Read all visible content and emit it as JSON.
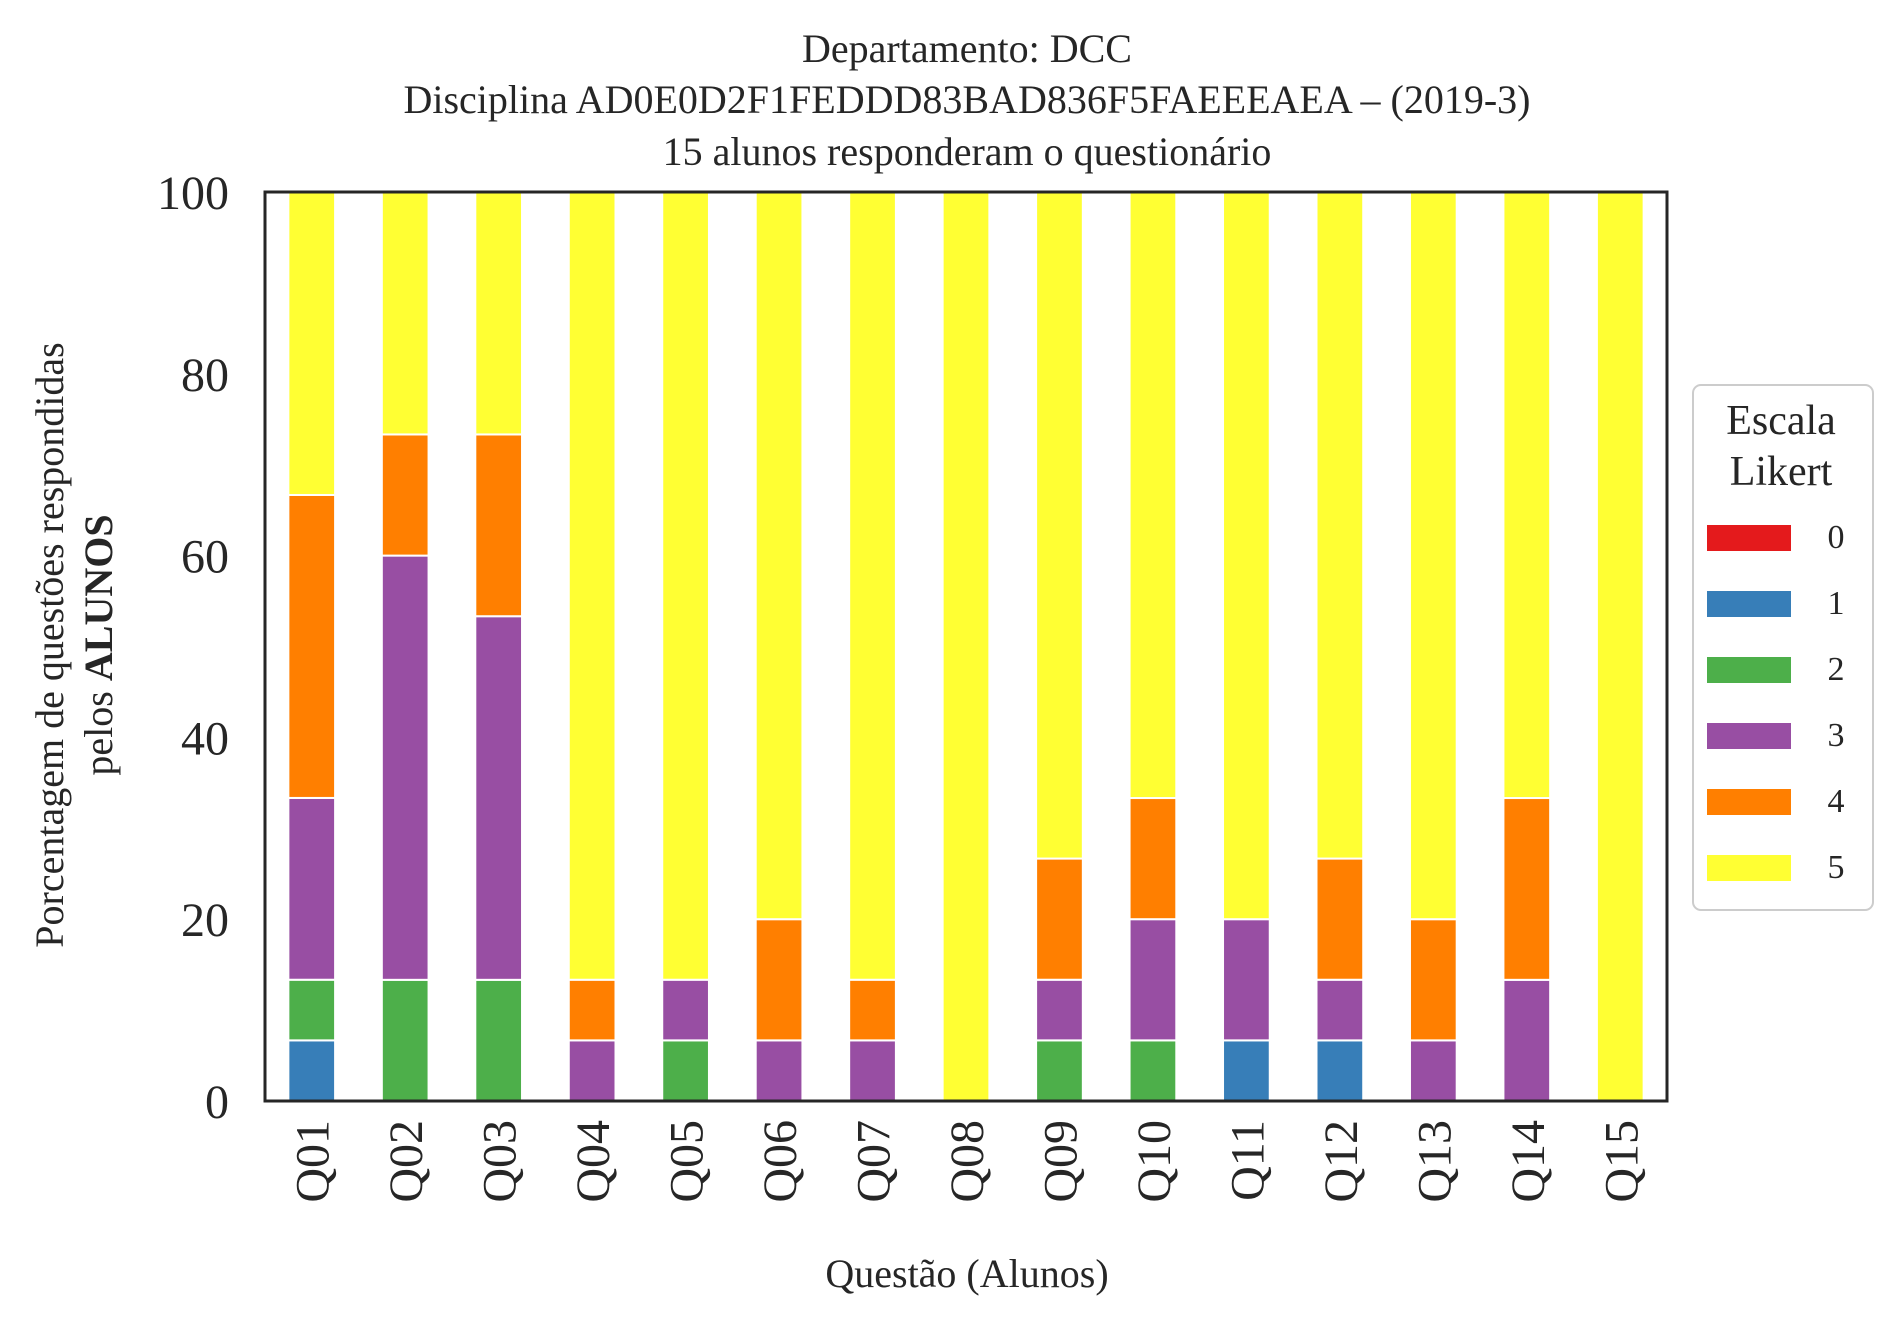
{
  "chart_data": {
    "type": "bar",
    "stacked": true,
    "title_lines": [
      "Departamento: DCC",
      "Disciplina AD0E0D2F1FEDDD83BAD836F5FAEEEAEA – (2019-3)",
      "15 alunos responderam o questionário"
    ],
    "xlabel": "Questão (Alunos)",
    "ylabel_line1": "Porcentagem de questões respondidas",
    "ylabel_line2_prefix": "pelos ",
    "ylabel_line2_bold": "ALUNOS",
    "ylim": [
      0,
      100
    ],
    "yticks": [
      "0",
      "20",
      "40",
      "60",
      "80",
      "100"
    ],
    "grid": false,
    "legend_position": "right",
    "legend_title_lines": [
      "Escala",
      "Likert"
    ],
    "categories": [
      "Q01",
      "Q02",
      "Q03",
      "Q04",
      "Q05",
      "Q06",
      "Q07",
      "Q08",
      "Q09",
      "Q10",
      "Q11",
      "Q12",
      "Q13",
      "Q14",
      "Q15"
    ],
    "series": [
      {
        "name": "0",
        "color": "#e41a1c",
        "values": [
          0,
          0,
          0,
          0,
          0,
          0,
          0,
          0,
          0,
          0,
          0,
          0,
          0,
          0,
          0
        ]
      },
      {
        "name": "1",
        "color": "#377eb8",
        "values": [
          6.67,
          0,
          0,
          0,
          0,
          0,
          0,
          0,
          0,
          0,
          6.67,
          6.67,
          0,
          0,
          0
        ]
      },
      {
        "name": "2",
        "color": "#4daf4a",
        "values": [
          6.67,
          13.33,
          13.33,
          0,
          6.67,
          0,
          0,
          0,
          6.67,
          6.67,
          0,
          0,
          0,
          0,
          0
        ]
      },
      {
        "name": "3",
        "color": "#984ea3",
        "values": [
          20,
          46.67,
          40,
          6.67,
          6.67,
          6.67,
          6.67,
          0,
          6.67,
          13.33,
          13.33,
          6.67,
          6.67,
          13.33,
          0
        ]
      },
      {
        "name": "4",
        "color": "#ff7f00",
        "values": [
          33.33,
          13.33,
          20,
          6.67,
          0,
          13.33,
          6.67,
          0,
          13.33,
          13.33,
          0,
          13.33,
          13.33,
          20,
          0
        ]
      },
      {
        "name": "5",
        "color": "#ffff33",
        "values": [
          33.33,
          26.67,
          26.67,
          86.67,
          86.67,
          80,
          86.67,
          100,
          73.33,
          66.67,
          80,
          73.33,
          80,
          66.67,
          100
        ]
      }
    ]
  }
}
